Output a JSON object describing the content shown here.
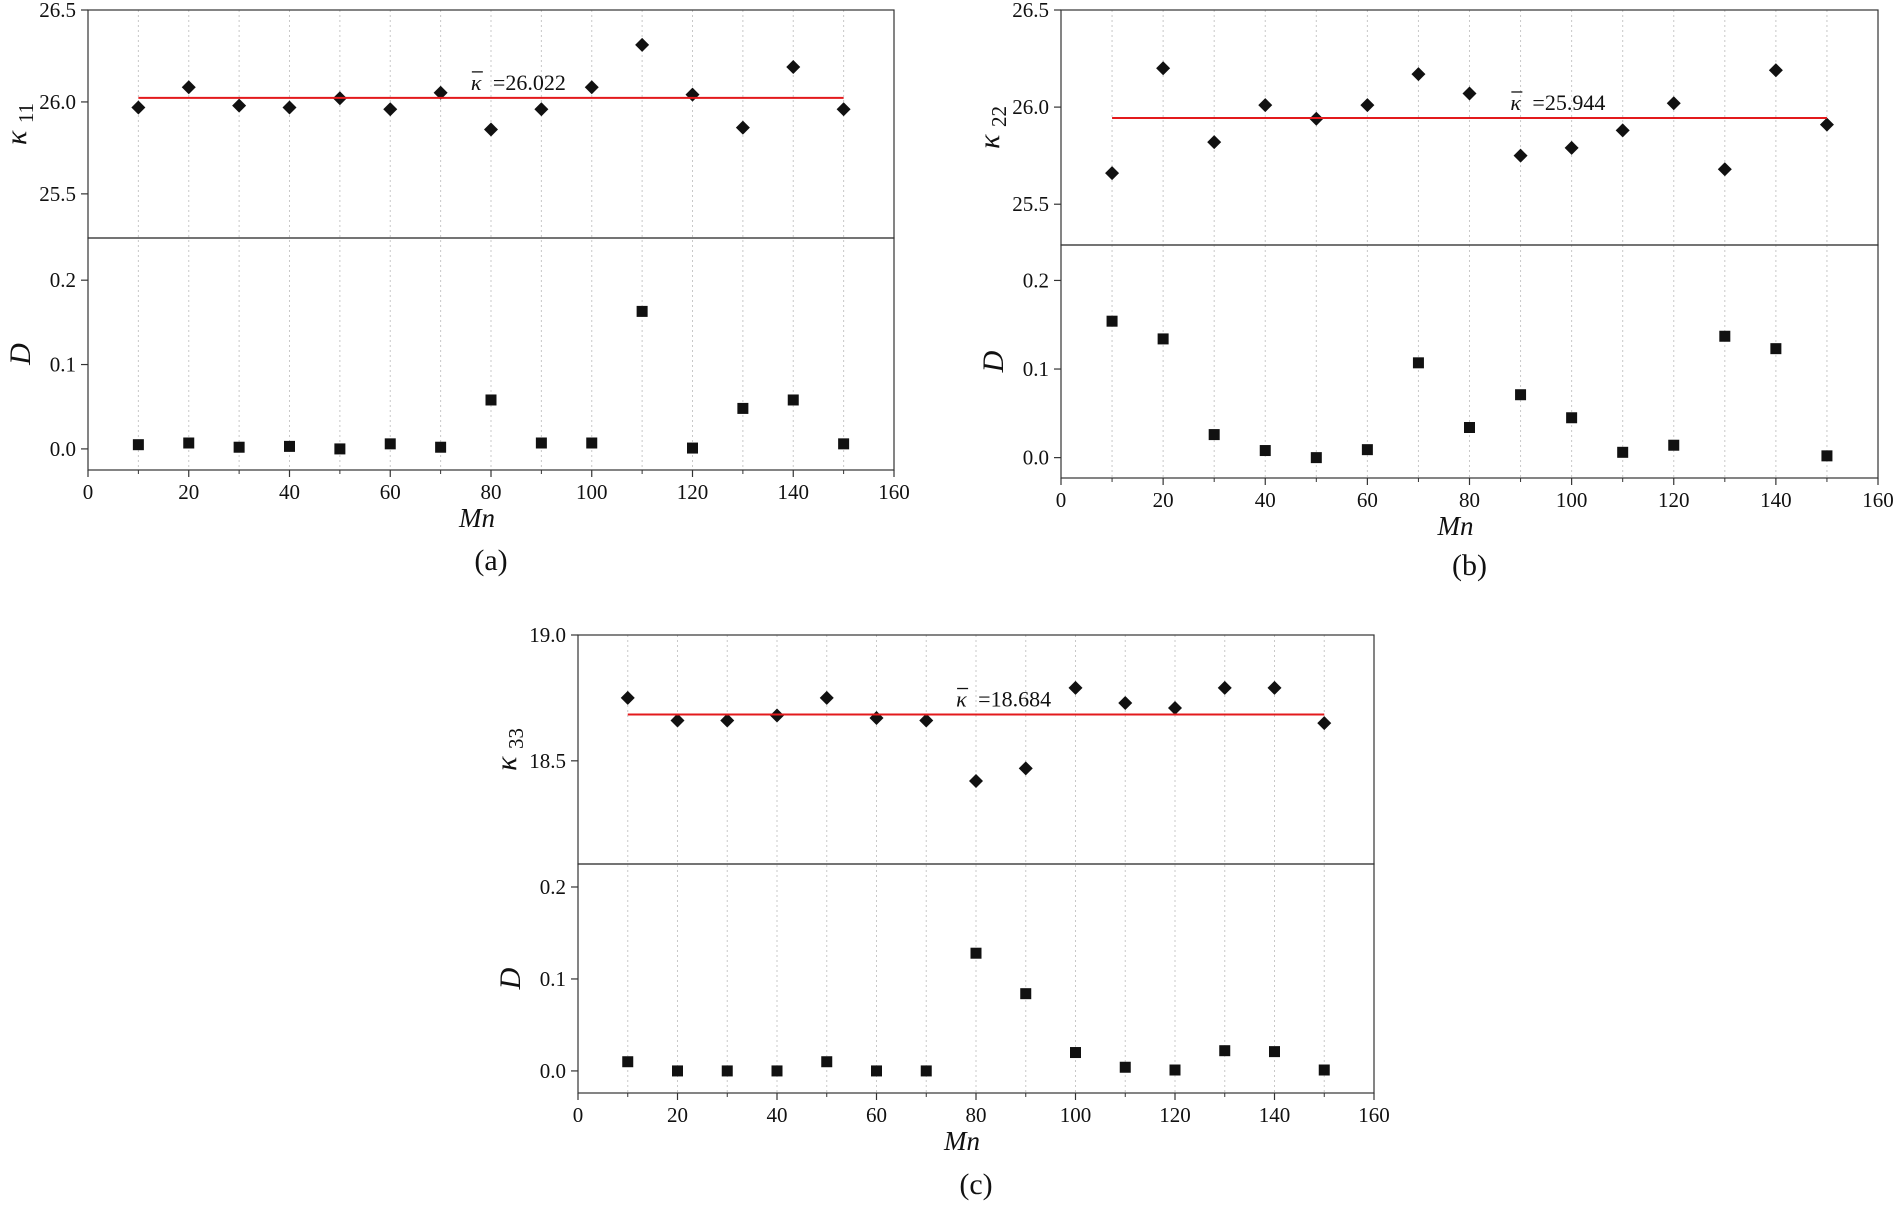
{
  "chart_data": [
    {
      "id": "a",
      "type": "scatter",
      "caption": "(a)",
      "xlabel": "Mn",
      "xlim": [
        0,
        160
      ],
      "xticks": [
        0,
        20,
        40,
        60,
        80,
        100,
        120,
        140,
        160
      ],
      "x": [
        10,
        20,
        30,
        40,
        50,
        60,
        70,
        80,
        90,
        100,
        110,
        120,
        130,
        140,
        150
      ],
      "top": {
        "ylabel": "κ",
        "ylabel_sub": "11",
        "ylim": [
          25.26,
          26.5
        ],
        "yticks": [
          "26.5",
          "26.0",
          "25.5"
        ],
        "marker": "diamond",
        "values": [
          25.97,
          26.08,
          25.98,
          25.97,
          26.02,
          25.96,
          26.05,
          25.85,
          25.96,
          26.08,
          26.31,
          26.04,
          25.86,
          26.19,
          25.96
        ],
        "mean": 26.022,
        "mean_label": "=26.022",
        "mean_symbol": "κ",
        "mean_color": "#e31a1c",
        "mean_x": [
          10,
          150
        ]
      },
      "bottom": {
        "ylabel": "D",
        "ylim": [
          -0.025,
          0.25
        ],
        "yticks": [
          "0.2",
          "0.1",
          "0.0"
        ],
        "marker": "square",
        "values": [
          0.005,
          0.007,
          0.002,
          0.003,
          0.0,
          0.006,
          0.002,
          0.058,
          0.007,
          0.007,
          0.163,
          0.001,
          0.048,
          0.058,
          0.006
        ]
      }
    },
    {
      "id": "b",
      "type": "scatter",
      "caption": "(b)",
      "xlabel": "Mn",
      "xlim": [
        0,
        160
      ],
      "xticks": [
        0,
        20,
        40,
        60,
        80,
        100,
        120,
        140,
        160
      ],
      "x": [
        10,
        20,
        30,
        40,
        50,
        60,
        70,
        80,
        90,
        100,
        110,
        120,
        130,
        140,
        150
      ],
      "top": {
        "ylabel": "κ",
        "ylabel_sub": "22",
        "ylim": [
          25.29,
          26.5
        ],
        "yticks": [
          "26.5",
          "26.0",
          "25.5"
        ],
        "marker": "diamond",
        "values": [
          25.66,
          26.2,
          25.82,
          26.01,
          25.94,
          26.01,
          26.17,
          26.07,
          25.75,
          25.79,
          25.88,
          26.02,
          25.68,
          26.19,
          25.91
        ],
        "mean": 25.944,
        "mean_label": "=25.944",
        "mean_symbol": "κ",
        "mean_color": "#e31a1c",
        "mean_x": [
          10,
          150
        ]
      },
      "bottom": {
        "ylabel": "D",
        "ylim": [
          -0.023,
          0.24
        ],
        "yticks": [
          "0.2",
          "0.1",
          "0.0"
        ],
        "marker": "square",
        "values": [
          0.154,
          0.134,
          0.026,
          0.008,
          0.0,
          0.009,
          0.107,
          0.034,
          0.071,
          0.045,
          0.006,
          0.014,
          0.137,
          0.123,
          0.002
        ]
      }
    },
    {
      "id": "c",
      "type": "scatter",
      "caption": "(c)",
      "xlabel": "Mn",
      "xlim": [
        0,
        160
      ],
      "xticks": [
        0,
        20,
        40,
        60,
        80,
        100,
        120,
        140,
        160
      ],
      "x": [
        10,
        20,
        30,
        40,
        50,
        60,
        70,
        80,
        90,
        100,
        110,
        120,
        130,
        140,
        150
      ],
      "top": {
        "ylabel": "κ",
        "ylabel_sub": "33",
        "ylim": [
          18.09,
          19.0
        ],
        "yticks": [
          "19.0",
          "18.5"
        ],
        "marker": "diamond",
        "values": [
          18.75,
          18.66,
          18.66,
          18.68,
          18.75,
          18.67,
          18.66,
          18.42,
          18.47,
          18.79,
          18.73,
          18.71,
          18.79,
          18.79,
          18.65
        ],
        "mean": 18.684,
        "mean_label": "=18.684",
        "mean_symbol": "κ",
        "mean_color": "#e31a1c",
        "mean_x": [
          10,
          150
        ]
      },
      "bottom": {
        "ylabel": "D",
        "ylim": [
          -0.024,
          0.225
        ],
        "yticks": [
          "0.2",
          "0.1",
          "0.0"
        ],
        "marker": "square",
        "values": [
          0.01,
          0.0,
          0.0,
          0.0,
          0.01,
          0.0,
          0.0,
          0.128,
          0.084,
          0.02,
          0.004,
          0.001,
          0.022,
          0.021,
          0.001
        ]
      }
    }
  ]
}
